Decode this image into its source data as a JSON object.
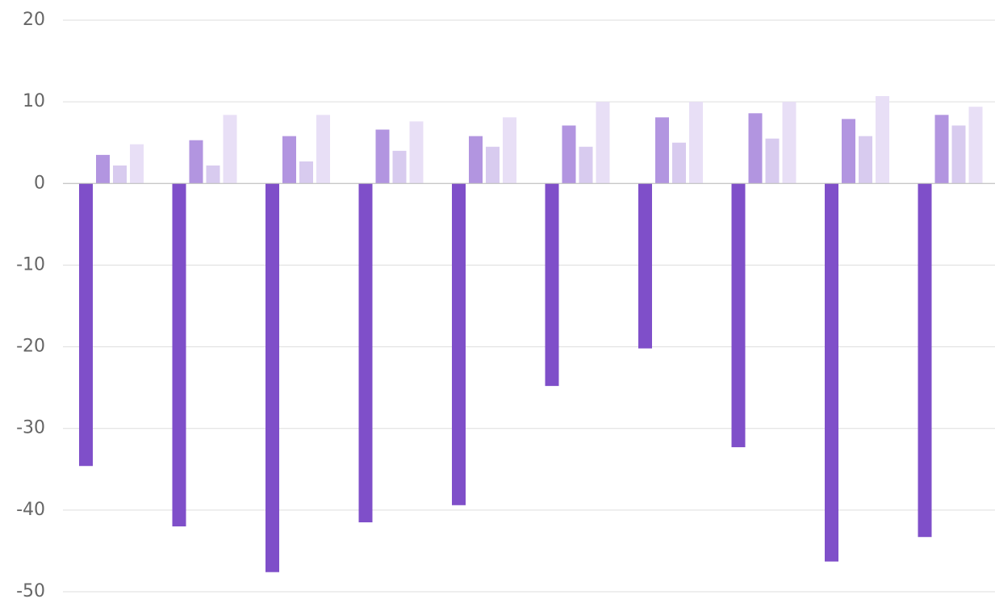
{
  "chart_data": {
    "type": "bar",
    "categories": [
      null,
      null,
      null,
      null,
      null,
      null,
      null,
      null,
      null,
      null
    ],
    "series": [
      {
        "color": "#7f4fc9",
        "values": [
          -34.6,
          -42,
          -47.6,
          -41.5,
          -39.4,
          -24.8,
          -20.2,
          -32.3,
          -46.3,
          -43.3
        ]
      },
      {
        "color": "#b295e0",
        "values": [
          3.5,
          5.3,
          5.8,
          6.6,
          5.8,
          7.1,
          8.1,
          8.6,
          7.9,
          8.4
        ]
      },
      {
        "color": "#d8cbef",
        "values": [
          2.2,
          2.2,
          2.7,
          4.0,
          4.5,
          4.5,
          5.0,
          5.5,
          5.8,
          7.1
        ]
      },
      {
        "color": "#e8dff6",
        "values": [
          4.8,
          8.4,
          8.4,
          7.6,
          8.1,
          10.0,
          10.0,
          10.0,
          10.7,
          9.4
        ]
      }
    ],
    "ylim": [
      -50,
      20
    ],
    "yticks": [
      -50,
      -40,
      -30,
      -20,
      -10,
      0,
      10,
      20
    ],
    "grid": true
  }
}
